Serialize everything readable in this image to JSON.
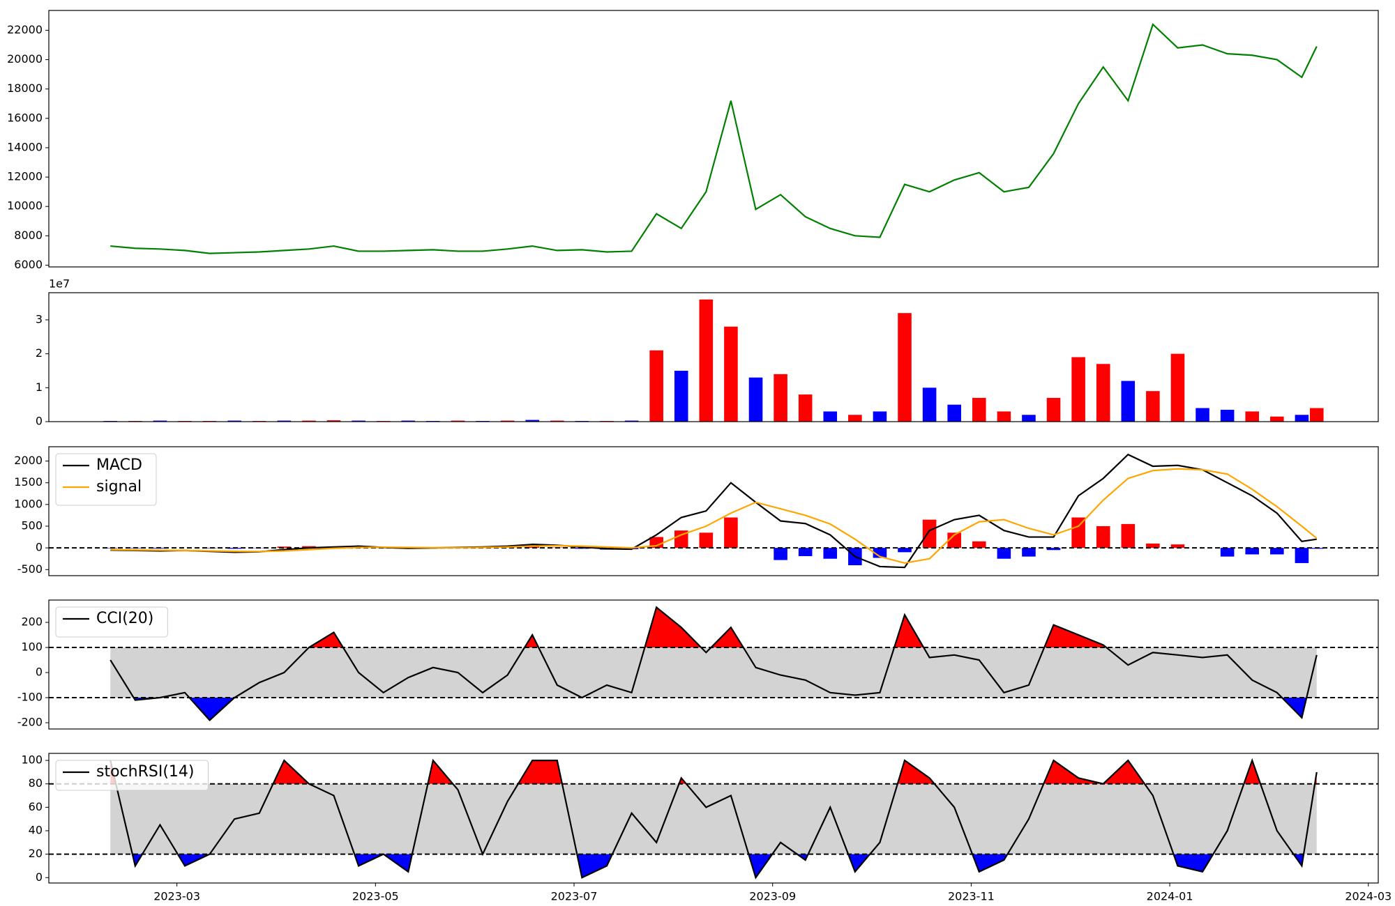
{
  "chart_data": [
    {
      "type": "line",
      "xlim": [
        1.71,
        15.1
      ],
      "ylim": [
        5880,
        23350
      ],
      "yticks": [
        6000,
        8000,
        10000,
        12000,
        14000,
        16000,
        18000,
        20000,
        22000
      ],
      "x": [
        2.33,
        2.58,
        2.83,
        3.08,
        3.33,
        3.58,
        3.83,
        4.08,
        4.33,
        4.58,
        4.83,
        5.08,
        5.33,
        5.58,
        5.83,
        6.08,
        6.33,
        6.58,
        6.83,
        7.08,
        7.33,
        7.58,
        7.83,
        8.08,
        8.33,
        8.58,
        8.83,
        9.08,
        9.33,
        9.58,
        9.83,
        10.08,
        10.33,
        10.58,
        10.83,
        11.08,
        11.33,
        11.58,
        11.83,
        12.08,
        12.33,
        12.58,
        12.83,
        13.08,
        13.33,
        13.58,
        13.83,
        14.08,
        14.33,
        14.48
      ],
      "series": [
        {
          "color": "green",
          "values": [
            7300,
            7150,
            7100,
            7000,
            6800,
            6850,
            6900,
            7000,
            7100,
            7300,
            6950,
            6950,
            7000,
            7050,
            6950,
            6950,
            7100,
            7300,
            7000,
            7050,
            6900,
            6950,
            9500,
            8500,
            11000,
            17200,
            9800,
            10800,
            9300,
            8500,
            8000,
            7900,
            11500,
            11000,
            11800,
            12300,
            11000,
            11300,
            13600,
            17000,
            19500,
            17200,
            22400,
            20800,
            21000,
            20400,
            20300,
            20000,
            18800,
            20900
          ]
        }
      ]
    },
    {
      "type": "bar",
      "xlim": [
        1.71,
        15.1
      ],
      "ylim": [
        0,
        3.8
      ],
      "yticks": [
        0,
        1,
        2,
        3
      ],
      "offset_text": "1e7",
      "x": [
        2.33,
        2.58,
        2.83,
        3.08,
        3.33,
        3.58,
        3.83,
        4.08,
        4.33,
        4.58,
        4.83,
        5.08,
        5.33,
        5.58,
        5.83,
        6.08,
        6.33,
        6.58,
        6.83,
        7.08,
        7.33,
        7.58,
        7.83,
        8.08,
        8.33,
        8.58,
        8.83,
        9.08,
        9.33,
        9.58,
        9.83,
        10.08,
        10.33,
        10.58,
        10.83,
        11.08,
        11.33,
        11.58,
        11.83,
        12.08,
        12.33,
        12.58,
        12.83,
        13.08,
        13.33,
        13.58,
        13.83,
        14.08,
        14.33,
        14.48
      ],
      "values": [
        0.02,
        0.02,
        0.03,
        0.02,
        0.02,
        0.03,
        0.02,
        0.03,
        0.03,
        0.04,
        0.03,
        0.02,
        0.03,
        0.02,
        0.03,
        0.02,
        0.03,
        0.05,
        0.03,
        0.02,
        0.02,
        0.03,
        2.1,
        1.5,
        3.6,
        2.8,
        1.3,
        1.4,
        0.8,
        0.3,
        0.2,
        0.3,
        3.2,
        1.0,
        0.5,
        0.7,
        0.3,
        0.2,
        0.7,
        1.9,
        1.7,
        1.2,
        0.9,
        2.0,
        0.4,
        0.35,
        0.3,
        0.15,
        0.2,
        0.4
      ],
      "colors": [
        "blue",
        "red",
        "blue",
        "red",
        "red",
        "blue",
        "red",
        "blue",
        "red",
        "red",
        "blue",
        "red",
        "blue",
        "blue",
        "red",
        "blue",
        "red",
        "blue",
        "red",
        "blue",
        "red",
        "blue",
        "red",
        "blue",
        "red",
        "red",
        "blue",
        "red",
        "red",
        "blue",
        "red",
        "blue",
        "red",
        "blue",
        "blue",
        "red",
        "red",
        "blue",
        "red",
        "red",
        "red",
        "blue",
        "red",
        "red",
        "blue",
        "blue",
        "red",
        "red",
        "blue",
        "red"
      ]
    },
    {
      "type": "line",
      "xlim": [
        1.71,
        15.1
      ],
      "ylim": [
        -640,
        2330
      ],
      "yticks": [
        -500,
        0,
        500,
        1000,
        1500,
        2000
      ],
      "legend": "upper left",
      "levels": [
        0
      ],
      "x": [
        2.33,
        2.58,
        2.83,
        3.08,
        3.33,
        3.58,
        3.83,
        4.08,
        4.33,
        4.58,
        4.83,
        5.08,
        5.33,
        5.58,
        5.83,
        6.08,
        6.33,
        6.58,
        6.83,
        7.08,
        7.33,
        7.58,
        7.83,
        8.08,
        8.33,
        8.58,
        8.83,
        9.08,
        9.33,
        9.58,
        9.83,
        10.08,
        10.33,
        10.58,
        10.83,
        11.08,
        11.33,
        11.58,
        11.83,
        12.08,
        12.33,
        12.58,
        12.83,
        13.08,
        13.33,
        13.58,
        13.83,
        14.08,
        14.33,
        14.48
      ],
      "series": [
        {
          "name": "MACD",
          "color": "black",
          "values": [
            -50,
            -60,
            -70,
            -60,
            -80,
            -100,
            -90,
            -40,
            0,
            20,
            40,
            10,
            -10,
            0,
            10,
            20,
            40,
            80,
            60,
            20,
            -20,
            -30,
            300,
            700,
            850,
            1500,
            1050,
            620,
            560,
            300,
            -200,
            -430,
            -450,
            400,
            650,
            750,
            400,
            250,
            250,
            1200,
            1600,
            2150,
            1880,
            1900,
            1800,
            1500,
            1200,
            800,
            150,
            200
          ]
        },
        {
          "name": "signal",
          "color": "orange",
          "values": [
            -40,
            -50,
            -55,
            -60,
            -70,
            -80,
            -85,
            -70,
            -40,
            -10,
            10,
            15,
            10,
            5,
            5,
            10,
            20,
            40,
            50,
            40,
            20,
            0,
            50,
            300,
            500,
            800,
            1050,
            900,
            750,
            550,
            200,
            -200,
            -350,
            -250,
            300,
            600,
            650,
            450,
            300,
            500,
            1100,
            1600,
            1780,
            1820,
            1800,
            1700,
            1350,
            950,
            500,
            220
          ]
        }
      ],
      "bars": {
        "positive_color": "red",
        "negative_color": "blue",
        "values": [
          -10,
          -10,
          -15,
          0,
          -10,
          -20,
          -5,
          30,
          40,
          30,
          30,
          -5,
          -20,
          -5,
          5,
          10,
          20,
          40,
          10,
          -20,
          -40,
          -30,
          250,
          400,
          350,
          700,
          0,
          -280,
          -190,
          -250,
          -400,
          -230,
          -100,
          650,
          350,
          150,
          -250,
          -200,
          -50,
          700,
          500,
          550,
          100,
          80,
          0,
          -200,
          -150,
          -150,
          -350,
          -20
        ]
      }
    },
    {
      "type": "line",
      "xlim": [
        1.71,
        15.1
      ],
      "ylim": [
        -225,
        289
      ],
      "yticks": [
        -200,
        -100,
        0,
        100,
        200
      ],
      "legend": "upper left",
      "levels": [
        -100,
        100
      ],
      "band": {
        "fill": "#d3d3d3",
        "above_color": "red",
        "below_color": "blue"
      },
      "x": [
        2.33,
        2.58,
        2.83,
        3.08,
        3.33,
        3.58,
        3.83,
        4.08,
        4.33,
        4.58,
        4.83,
        5.08,
        5.33,
        5.58,
        5.83,
        6.08,
        6.33,
        6.58,
        6.83,
        7.08,
        7.33,
        7.58,
        7.83,
        8.08,
        8.33,
        8.58,
        8.83,
        9.08,
        9.33,
        9.58,
        9.83,
        10.08,
        10.33,
        10.58,
        10.83,
        11.08,
        11.33,
        11.58,
        11.83,
        12.08,
        12.33,
        12.58,
        12.83,
        13.08,
        13.33,
        13.58,
        13.83,
        14.08,
        14.33,
        14.48
      ],
      "series": [
        {
          "name": "CCI(20)",
          "color": "black",
          "values": [
            50,
            -110,
            -100,
            -80,
            -190,
            -100,
            -40,
            0,
            100,
            160,
            0,
            -80,
            -20,
            20,
            0,
            -80,
            -10,
            150,
            -50,
            -100,
            -50,
            -80,
            260,
            180,
            80,
            180,
            20,
            -10,
            -30,
            -80,
            -90,
            -80,
            230,
            60,
            70,
            50,
            -80,
            -50,
            190,
            150,
            110,
            30,
            80,
            70,
            60,
            70,
            -30,
            -80,
            -180,
            70
          ]
        }
      ]
    },
    {
      "type": "line",
      "xlim": [
        1.71,
        15.1
      ],
      "ylim": [
        -4.6,
        106
      ],
      "yticks": [
        0,
        20,
        40,
        60,
        80,
        100
      ],
      "legend": "upper left",
      "levels": [
        20,
        80
      ],
      "band": {
        "fill": "#d3d3d3",
        "above_color": "red",
        "below_color": "blue"
      },
      "xticks": [
        {
          "value": 3,
          "label": "2023-03"
        },
        {
          "value": 5,
          "label": "2023-05"
        },
        {
          "value": 7,
          "label": "2023-07"
        },
        {
          "value": 9,
          "label": "2023-09"
        },
        {
          "value": 11,
          "label": "2023-11"
        },
        {
          "value": 13,
          "label": "2024-01"
        },
        {
          "value": 15,
          "label": "2024-03"
        }
      ],
      "x": [
        2.33,
        2.58,
        2.83,
        3.08,
        3.33,
        3.58,
        3.83,
        4.08,
        4.33,
        4.58,
        4.83,
        5.08,
        5.33,
        5.58,
        5.83,
        6.08,
        6.33,
        6.58,
        6.83,
        7.08,
        7.33,
        7.58,
        7.83,
        8.08,
        8.33,
        8.58,
        8.83,
        9.08,
        9.33,
        9.58,
        9.83,
        10.08,
        10.33,
        10.58,
        10.83,
        11.08,
        11.33,
        11.58,
        11.83,
        12.08,
        12.33,
        12.58,
        12.83,
        13.08,
        13.33,
        13.58,
        13.83,
        14.08,
        14.33,
        14.48
      ],
      "series": [
        {
          "name": "stochRSI(14)",
          "color": "black",
          "values": [
            100,
            10,
            45,
            10,
            20,
            50,
            55,
            100,
            80,
            70,
            10,
            20,
            5,
            100,
            75,
            20,
            65,
            100,
            100,
            0,
            10,
            55,
            30,
            85,
            60,
            70,
            0,
            30,
            15,
            60,
            5,
            30,
            100,
            85,
            60,
            5,
            15,
            50,
            100,
            85,
            80,
            100,
            70,
            10,
            5,
            40,
            100,
            40,
            10,
            90
          ]
        }
      ]
    }
  ]
}
